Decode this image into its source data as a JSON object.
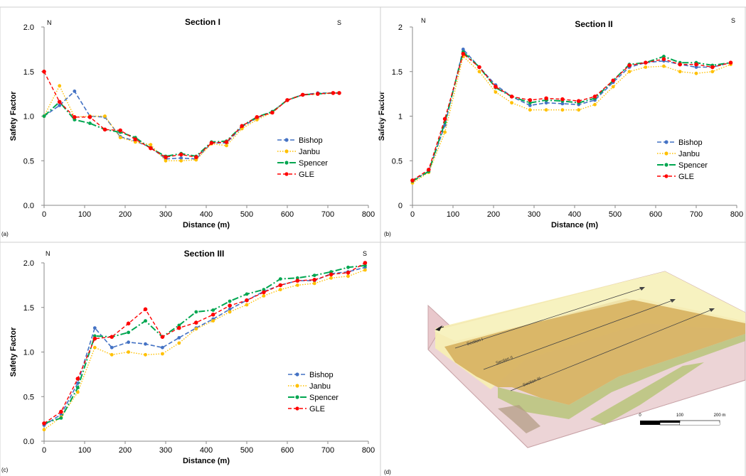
{
  "panel_letters": [
    "(a)",
    "(b)",
    "(c)",
    "(d)"
  ],
  "legend_labels": [
    "Bishop",
    "Janbu",
    "Spencer",
    "GLE"
  ],
  "series_colors": {
    "Bishop": "#4472C4",
    "Janbu": "#FFC000",
    "Spencer": "#00A650",
    "GLE": "#FF0000"
  },
  "chart_data": [
    {
      "type": "line",
      "title": "Section I",
      "xlabel": "Distance (m)",
      "ylabel": "Safety Factor",
      "xlim": [
        0,
        800
      ],
      "ylim": [
        0,
        2
      ],
      "xticks": [
        "0",
        "100",
        "200",
        "300",
        "400",
        "500",
        "600",
        "700",
        "800"
      ],
      "yticks": [
        "0.0",
        "0.5",
        "1.0",
        "1.5",
        "2.0"
      ],
      "corner_labels": [
        "N",
        "S"
      ],
      "legend_position": "center-right",
      "series": [
        {
          "name": "Bishop",
          "x": [
            0,
            38,
            75,
            113,
            150,
            188,
            225,
            263,
            300,
            338,
            375,
            413,
            450,
            488,
            525,
            563,
            600,
            638,
            675,
            713,
            728
          ],
          "y": [
            1.0,
            1.12,
            1.28,
            1.0,
            0.99,
            0.77,
            0.72,
            0.65,
            0.52,
            0.53,
            0.52,
            0.7,
            0.7,
            0.88,
            0.98,
            1.05,
            1.18,
            1.24,
            1.26,
            1.26,
            1.26
          ]
        },
        {
          "name": "Janbu",
          "x": [
            0,
            38,
            75,
            113,
            150,
            188,
            225,
            263,
            300,
            338,
            375,
            413,
            450,
            488,
            525,
            563,
            600,
            638,
            675,
            713,
            728
          ],
          "y": [
            1.0,
            1.34,
            0.99,
            1.0,
            1.0,
            0.76,
            0.71,
            0.68,
            0.5,
            0.5,
            0.51,
            0.69,
            0.67,
            0.86,
            0.96,
            1.04,
            1.18,
            1.24,
            1.25,
            1.26,
            1.26
          ]
        },
        {
          "name": "Spencer",
          "x": [
            0,
            38,
            75,
            113,
            150,
            188,
            225,
            263,
            300,
            338,
            375,
            413,
            450,
            488,
            525,
            563,
            600,
            638,
            675,
            713,
            728
          ],
          "y": [
            1.0,
            1.16,
            0.96,
            0.92,
            0.85,
            0.82,
            0.76,
            0.64,
            0.55,
            0.58,
            0.55,
            0.71,
            0.72,
            0.89,
            0.99,
            1.05,
            1.18,
            1.24,
            1.25,
            1.26,
            1.26
          ]
        },
        {
          "name": "GLE",
          "x": [
            0,
            38,
            75,
            113,
            150,
            188,
            225,
            263,
            300,
            338,
            375,
            413,
            450,
            488,
            525,
            563,
            600,
            638,
            675,
            713,
            728
          ],
          "y": [
            1.5,
            1.16,
            0.99,
            0.99,
            0.85,
            0.84,
            0.74,
            0.64,
            0.54,
            0.57,
            0.54,
            0.7,
            0.71,
            0.89,
            0.99,
            1.04,
            1.18,
            1.24,
            1.25,
            1.26,
            1.26
          ]
        }
      ]
    },
    {
      "type": "line",
      "title": "Section II",
      "xlabel": "Distance (m)",
      "ylabel": "Safety Factor",
      "xlim": [
        0,
        800
      ],
      "ylim": [
        0,
        2
      ],
      "xticks": [
        "0",
        "100",
        "200",
        "300",
        "400",
        "500",
        "600",
        "700",
        "800"
      ],
      "yticks": [
        "0",
        "0.5",
        "1",
        "1.5",
        "2"
      ],
      "corner_labels": [
        "N",
        "S"
      ],
      "legend_position": "bottom-right",
      "series": [
        {
          "name": "Bishop",
          "x": [
            0,
            40,
            80,
            125,
            165,
            205,
            245,
            290,
            330,
            370,
            410,
            450,
            495,
            535,
            575,
            620,
            660,
            700,
            740,
            785
          ],
          "y": [
            0.28,
            0.38,
            0.9,
            1.75,
            1.55,
            1.35,
            1.22,
            1.12,
            1.15,
            1.14,
            1.13,
            1.18,
            1.38,
            1.55,
            1.6,
            1.62,
            1.58,
            1.55,
            1.55,
            1.6
          ]
        },
        {
          "name": "Janbu",
          "x": [
            0,
            40,
            80,
            125,
            165,
            205,
            245,
            290,
            330,
            370,
            410,
            450,
            495,
            535,
            575,
            620,
            660,
            700,
            740,
            785
          ],
          "y": [
            0.25,
            0.37,
            0.82,
            1.67,
            1.5,
            1.27,
            1.15,
            1.07,
            1.07,
            1.07,
            1.07,
            1.13,
            1.33,
            1.5,
            1.55,
            1.56,
            1.5,
            1.48,
            1.5,
            1.58
          ]
        },
        {
          "name": "Spencer",
          "x": [
            0,
            40,
            80,
            125,
            165,
            205,
            245,
            290,
            330,
            370,
            410,
            450,
            495,
            535,
            575,
            620,
            660,
            700,
            740,
            785
          ],
          "y": [
            0.27,
            0.38,
            0.93,
            1.72,
            1.55,
            1.32,
            1.22,
            1.15,
            1.18,
            1.17,
            1.15,
            1.2,
            1.4,
            1.58,
            1.6,
            1.67,
            1.6,
            1.6,
            1.57,
            1.6
          ]
        },
        {
          "name": "GLE",
          "x": [
            0,
            40,
            80,
            125,
            165,
            205,
            245,
            290,
            330,
            370,
            410,
            450,
            495,
            535,
            575,
            620,
            660,
            700,
            740,
            785
          ],
          "y": [
            0.28,
            0.4,
            0.97,
            1.7,
            1.55,
            1.33,
            1.22,
            1.18,
            1.2,
            1.19,
            1.17,
            1.22,
            1.4,
            1.57,
            1.6,
            1.64,
            1.58,
            1.58,
            1.55,
            1.6
          ]
        }
      ]
    },
    {
      "type": "line",
      "title": "Section III",
      "xlabel": "Distance (m)",
      "ylabel": "Safety Factor",
      "xlim": [
        0,
        800
      ],
      "ylim": [
        0,
        2
      ],
      "xticks": [
        "0",
        "100",
        "200",
        "300",
        "400",
        "500",
        "600",
        "700",
        "800"
      ],
      "yticks": [
        "0.0",
        "0.5",
        "1.0",
        "1.5",
        "2.0"
      ],
      "corner_labels": [
        "N",
        "S"
      ],
      "legend_position": "center-right",
      "series": [
        {
          "name": "Bishop",
          "x": [
            0,
            42,
            83,
            125,
            167,
            208,
            250,
            292,
            333,
            375,
            417,
            458,
            500,
            542,
            583,
            625,
            667,
            708,
            750,
            792
          ],
          "y": [
            0.18,
            0.3,
            0.65,
            1.27,
            1.05,
            1.11,
            1.09,
            1.05,
            1.16,
            1.27,
            1.37,
            1.48,
            1.58,
            1.68,
            1.75,
            1.8,
            1.8,
            1.88,
            1.9,
            1.95
          ]
        },
        {
          "name": "Janbu",
          "x": [
            0,
            42,
            83,
            125,
            167,
            208,
            250,
            292,
            333,
            375,
            417,
            458,
            500,
            542,
            583,
            625,
            667,
            708,
            750,
            792
          ],
          "y": [
            0.13,
            0.27,
            0.55,
            1.05,
            0.97,
            1.0,
            0.97,
            0.98,
            1.1,
            1.26,
            1.35,
            1.45,
            1.53,
            1.63,
            1.7,
            1.75,
            1.77,
            1.83,
            1.85,
            1.92
          ]
        },
        {
          "name": "Spencer",
          "x": [
            0,
            42,
            83,
            125,
            167,
            208,
            250,
            292,
            333,
            375,
            417,
            458,
            500,
            542,
            583,
            625,
            667,
            708,
            750,
            792
          ],
          "y": [
            0.2,
            0.26,
            0.6,
            1.18,
            1.17,
            1.22,
            1.35,
            1.17,
            1.3,
            1.45,
            1.47,
            1.57,
            1.65,
            1.7,
            1.82,
            1.83,
            1.86,
            1.9,
            1.95,
            1.97
          ]
        },
        {
          "name": "GLE",
          "x": [
            0,
            42,
            83,
            125,
            167,
            208,
            250,
            292,
            333,
            375,
            417,
            458,
            500,
            542,
            583,
            625,
            667,
            708,
            750,
            792
          ],
          "y": [
            0.2,
            0.33,
            0.7,
            1.15,
            1.17,
            1.32,
            1.48,
            1.17,
            1.27,
            1.33,
            1.42,
            1.52,
            1.58,
            1.67,
            1.75,
            1.8,
            1.81,
            1.87,
            1.89,
            2.0
          ]
        }
      ]
    }
  ],
  "map_panel": {
    "section_labels": [
      "Section I",
      "Section II",
      "Section III"
    ],
    "scale_labels": [
      "0",
      "100",
      "200 m"
    ],
    "layer_colors": {
      "top": "#f7f0b3",
      "middle": "#d8b464",
      "base": "#e9c8cc",
      "green": "#b8c47a"
    }
  }
}
